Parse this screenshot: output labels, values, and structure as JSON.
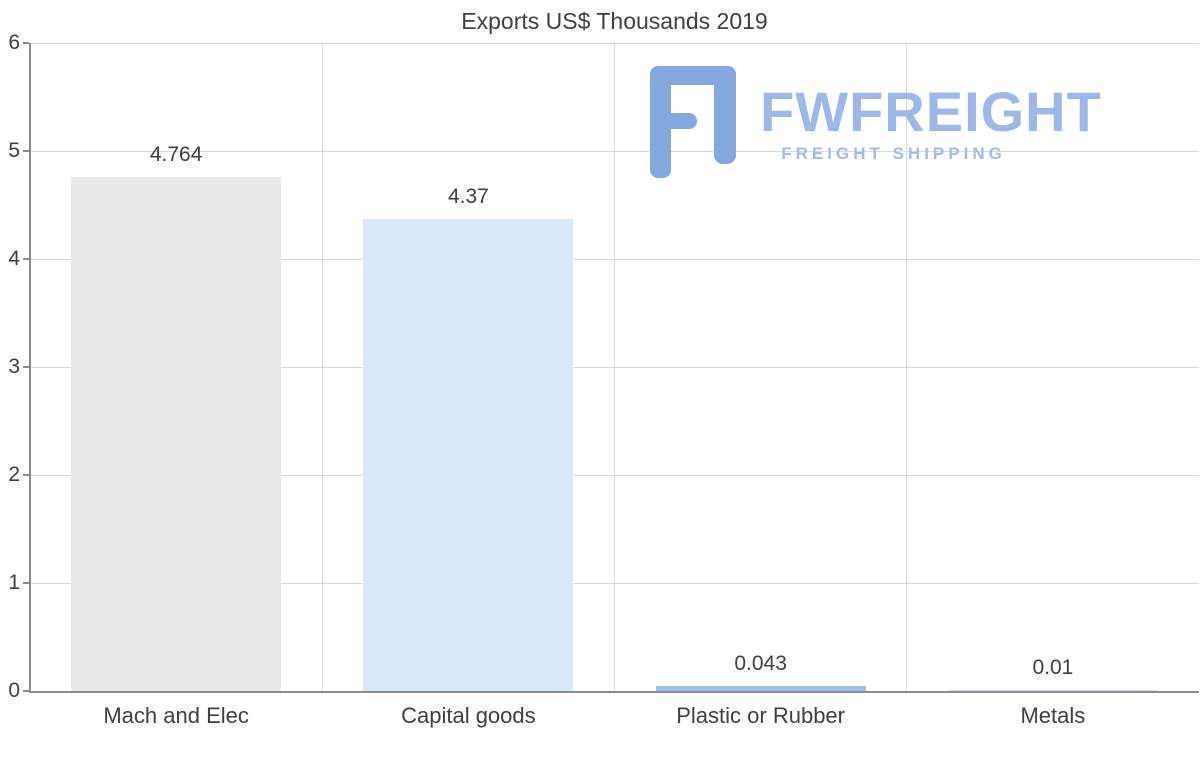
{
  "chart_data": {
    "type": "bar",
    "title": "Exports US$ Thousands 2019",
    "categories": [
      "Mach and Elec",
      "Capital goods",
      "Plastic or Rubber",
      "Metals"
    ],
    "values": [
      4.764,
      4.37,
      0.043,
      0.01
    ],
    "data_labels": [
      "4.764",
      "4.37",
      "0.043",
      "0.01"
    ],
    "bar_colors": [
      "#e8e8e8",
      "#d9e7f8",
      "#9cc2e5",
      "#cfe2f6"
    ],
    "xlabel": "",
    "ylabel": "",
    "ylim": [
      0,
      6
    ],
    "yticks": [
      0,
      1,
      2,
      3,
      4,
      5,
      6
    ],
    "grid": true,
    "legend": "none",
    "text_color": "#404040",
    "gridline_color": "#d9d9d9",
    "axis_color": "#8c8c8c"
  },
  "watermark": {
    "brand": "FWFREIGHT",
    "tagline": "FREIGHT SHIPPING",
    "logo_icon": "fwfreight-f-monogram",
    "color": "#9db8e6"
  }
}
